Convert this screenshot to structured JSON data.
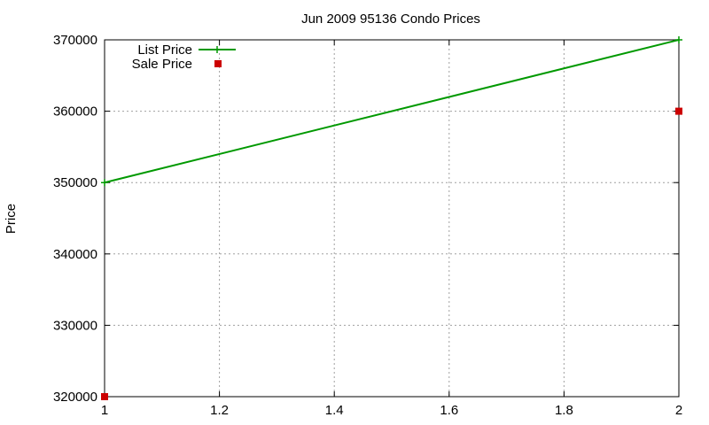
{
  "chart_data": {
    "type": "line",
    "title": "Jun 2009 95136 Condo Prices",
    "xlabel": "",
    "ylabel": "Price",
    "xlim": [
      1,
      2
    ],
    "ylim": [
      320000,
      370000
    ],
    "x_ticks": [
      1,
      1.2,
      1.4,
      1.6,
      1.8,
      2
    ],
    "x_tick_labels": [
      "1",
      "1.2",
      "1.4",
      "1.6",
      "1.8",
      "2"
    ],
    "y_ticks": [
      320000,
      330000,
      340000,
      350000,
      360000,
      370000
    ],
    "y_tick_labels": [
      "320000",
      "330000",
      "340000",
      "350000",
      "360000",
      "370000"
    ],
    "grid": true,
    "legend_position": "top-left",
    "series": [
      {
        "name": "List Price",
        "style": "linespoints",
        "color": "#009900",
        "points": [
          [
            1,
            350000
          ],
          [
            2,
            370000
          ]
        ]
      },
      {
        "name": "Sale Price",
        "style": "points",
        "color": "#cc0000",
        "points": [
          [
            1,
            320000
          ],
          [
            2,
            360000
          ]
        ]
      }
    ]
  }
}
